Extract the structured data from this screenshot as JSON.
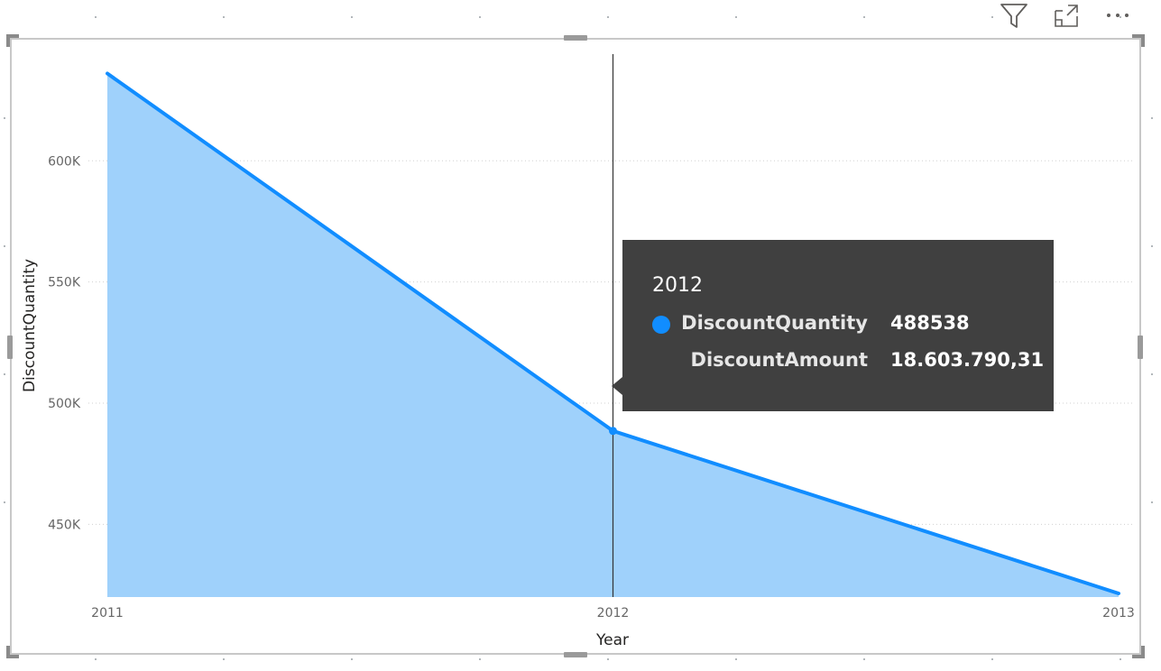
{
  "header_icons": {
    "filter": "filter-icon",
    "focus": "focus-mode-icon",
    "more": "more-options-icon"
  },
  "colors": {
    "line": "#118DFF",
    "area": "#9fd1fb",
    "gridline": "#d0d0d0",
    "tooltip_bg": "#404040"
  },
  "chart_data": {
    "type": "area",
    "x": [
      2011,
      2012,
      2013
    ],
    "series": [
      {
        "name": "DiscountQuantity",
        "values": [
          636000,
          488538,
          421500
        ]
      }
    ],
    "x_ticks": [
      "2011",
      "2012",
      "2013"
    ],
    "y_ticks": [
      {
        "value": 450000,
        "label": "450K"
      },
      {
        "value": 500000,
        "label": "500K"
      },
      {
        "value": 550000,
        "label": "550K"
      },
      {
        "value": 600000,
        "label": "600K"
      }
    ],
    "xlabel": "Year",
    "ylabel": "DiscountQuantity",
    "ylim": [
      420000,
      644000
    ],
    "grid": true,
    "legend": "none",
    "hover_category": "2012"
  },
  "tooltip": {
    "title": "2012",
    "rows": [
      {
        "name": "DiscountQuantity",
        "value": "488538",
        "has_marker": true
      },
      {
        "name": "DiscountAmount",
        "value": "18.603.790,31",
        "has_marker": false
      }
    ]
  }
}
